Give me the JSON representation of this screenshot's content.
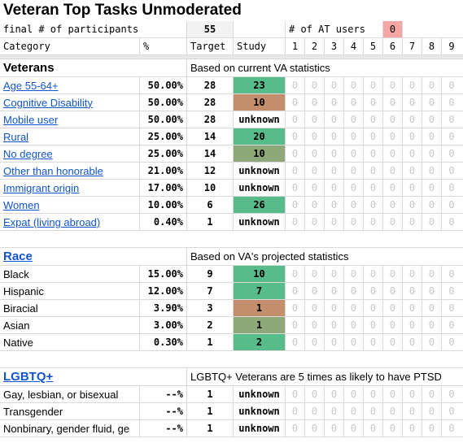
{
  "title": "Veteran Top Tasks Unmoderated",
  "participants_row": {
    "label": "final # of participants",
    "value": "55",
    "at_label": "# of AT users",
    "at_value": "0"
  },
  "header": {
    "category": "Category",
    "pct": "%",
    "target": "Target",
    "study": "Study",
    "cols": [
      "1",
      "2",
      "3",
      "4",
      "5",
      "6",
      "7",
      "8",
      "9"
    ]
  },
  "veterans": {
    "label": "Veterans",
    "note": "Based on current VA statistics",
    "rows": [
      {
        "cat": "Age 55-64+",
        "pct": "50.00%",
        "tgt": "28",
        "study": "23",
        "color": "green"
      },
      {
        "cat": "Cognitive Disability",
        "pct": "50.00%",
        "tgt": "28",
        "study": "10",
        "color": "brown"
      },
      {
        "cat": "Mobile user",
        "pct": "50.00%",
        "tgt": "28",
        "study": "unknown",
        "color": ""
      },
      {
        "cat": "Rural",
        "pct": "25.00%",
        "tgt": "14",
        "study": "20",
        "color": "green"
      },
      {
        "cat": "No degree",
        "pct": "25.00%",
        "tgt": "14",
        "study": "10",
        "color": "olive"
      },
      {
        "cat": "Other than honorable",
        "pct": "21.00%",
        "tgt": "12",
        "study": "unknown",
        "color": ""
      },
      {
        "cat": "Immigrant origin",
        "pct": "17.00%",
        "tgt": "10",
        "study": "unknown",
        "color": ""
      },
      {
        "cat": "Women",
        "pct": "10.00%",
        "tgt": "6",
        "study": "26",
        "color": "green"
      },
      {
        "cat": "Expat (living abroad)",
        "pct": "0.40%",
        "tgt": "1",
        "study": "unknown",
        "color": ""
      }
    ]
  },
  "race": {
    "label": "Race",
    "note": "Based on VA's projected statistics",
    "rows": [
      {
        "cat": "Black",
        "pct": "15.00%",
        "tgt": "9",
        "study": "10",
        "color": "green"
      },
      {
        "cat": "Hispanic",
        "pct": "12.00%",
        "tgt": "7",
        "study": "7",
        "color": "green"
      },
      {
        "cat": "Biracial",
        "pct": "3.90%",
        "tgt": "3",
        "study": "1",
        "color": "brown"
      },
      {
        "cat": "Asian",
        "pct": "3.00%",
        "tgt": "2",
        "study": "1",
        "color": "olive"
      },
      {
        "cat": "Native",
        "pct": "0.30%",
        "tgt": "1",
        "study": "2",
        "color": "green"
      }
    ]
  },
  "lgbtq": {
    "label": "LGBTQ+",
    "note": "LGBTQ+ Veterans are 5 times as likely to have PTSD",
    "rows": [
      {
        "cat": "Gay, lesbian, or bisexual",
        "pct": "--%",
        "tgt": "1",
        "study": "unknown",
        "color": ""
      },
      {
        "cat": "Transgender",
        "pct": "--%",
        "tgt": "1",
        "study": "unknown",
        "color": ""
      },
      {
        "cat": "Nonbinary, gender fluid, ge",
        "pct": "--%",
        "tgt": "1",
        "study": "unknown",
        "color": ""
      }
    ]
  },
  "zero": "0",
  "colors": {
    "green": "#57bb8a",
    "brown": "#c48e6d",
    "olive": "#8fa879",
    "pink": "#f4a7a4",
    "link": "#1155cc"
  }
}
